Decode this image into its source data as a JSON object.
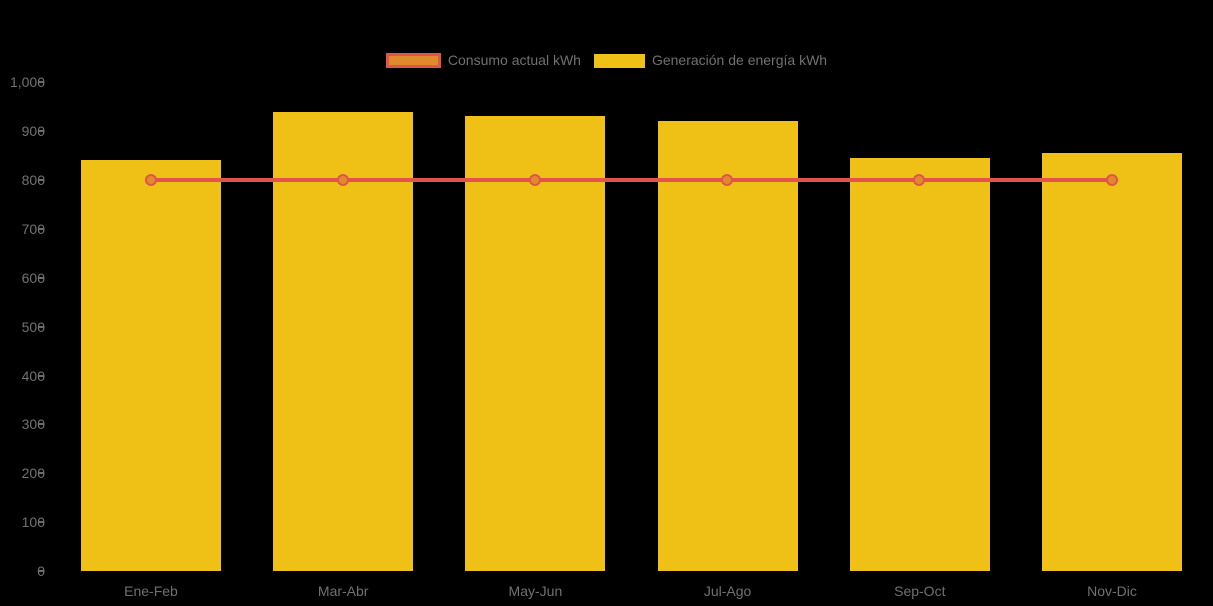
{
  "chart_data": {
    "type": "bar",
    "title": "",
    "xlabel": "",
    "ylabel": "",
    "categories": [
      "Ene-Feb",
      "Mar-Abr",
      "May-Jun",
      "Jul-Ago",
      "Sep-Oct",
      "Nov-Dic"
    ],
    "series": [
      {
        "name": "Consumo actual kWh",
        "type": "line",
        "values": [
          800,
          800,
          800,
          800,
          800,
          800
        ],
        "line_color": "#E2544A",
        "marker_fill_color": "#E08A2D"
      },
      {
        "name": "Generación de energía kWh",
        "type": "bar",
        "values": [
          840,
          940,
          930,
          920,
          845,
          855
        ],
        "bar_color": "#EFC116"
      }
    ],
    "ylim": [
      0,
      1000
    ],
    "ytick_values": [
      0,
      100,
      200,
      300,
      400,
      500,
      600,
      700,
      800,
      900,
      1000
    ],
    "ytick_labels": [
      "0",
      "100",
      "200",
      "300",
      "400",
      "500",
      "600",
      "700",
      "800",
      "900",
      "1,000"
    ],
    "grid": false,
    "legend_position": "top-center",
    "background_color": "#000000",
    "axis_text_color": "#717171"
  }
}
